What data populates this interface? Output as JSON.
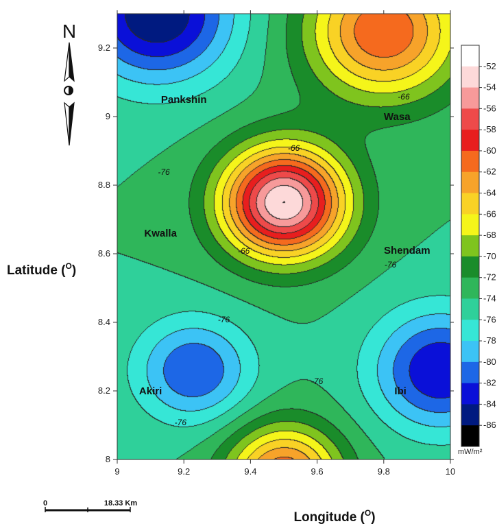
{
  "chart_data": {
    "type": "heatmap",
    "xlabel": "Longitude (",
    "xlabel_sup": "O",
    "xlabel_close": ")",
    "ylabel": "Latitude (",
    "ylabel_sup": "O",
    "ylabel_close": ")",
    "xlim": [
      9,
      10
    ],
    "ylim": [
      8,
      9.3
    ],
    "x_ticks": [
      "9",
      "9.2",
      "9.4",
      "9.6",
      "9.8",
      "10"
    ],
    "y_ticks": [
      "8",
      "8.2",
      "8.4",
      "8.6",
      "8.8",
      "9",
      "9.2"
    ],
    "colorbar": {
      "levels": [
        "-52",
        "-54",
        "-56",
        "-58",
        "-60",
        "-62",
        "-64",
        "-66",
        "-68",
        "-70",
        "-72",
        "-74",
        "-76",
        "-78",
        "-80",
        "-82",
        "-84",
        "-86"
      ],
      "colors": [
        "#ffffff",
        "#fdd9d9",
        "#f79a9a",
        "#ee4a4a",
        "#e81e1e",
        "#f56a1e",
        "#f7a32a",
        "#f9d225",
        "#f5f51a",
        "#7fc41e",
        "#1a8c2a",
        "#2fb65a",
        "#2fd09a",
        "#36e6d6",
        "#3cc3f5",
        "#1d67e6",
        "#0a10d8",
        "#001a80",
        "#000000"
      ],
      "unit": "mW/m²"
    },
    "places": [
      {
        "name": "Pankshin",
        "lon": 9.2,
        "lat": 9.04
      },
      {
        "name": "Wasa",
        "lon": 9.84,
        "lat": 8.99
      },
      {
        "name": "Kwalla",
        "lon": 9.13,
        "lat": 8.65
      },
      {
        "name": "Shendam",
        "lon": 9.87,
        "lat": 8.6
      },
      {
        "name": "Akiri",
        "lon": 9.1,
        "lat": 8.19
      },
      {
        "name": "Ibi",
        "lon": 9.85,
        "lat": 8.19
      }
    ],
    "contour_labels": [
      {
        "text": "-66",
        "lon": 9.86,
        "lat": 9.05
      },
      {
        "text": "-66",
        "lon": 9.53,
        "lat": 8.9
      },
      {
        "text": "-66",
        "lon": 9.38,
        "lat": 8.6
      },
      {
        "text": "-76",
        "lon": 9.14,
        "lat": 8.83
      },
      {
        "text": "-76",
        "lon": 9.32,
        "lat": 8.4
      },
      {
        "text": "-76",
        "lon": 9.82,
        "lat": 8.56
      },
      {
        "text": "-76",
        "lon": 9.6,
        "lat": 8.22
      },
      {
        "text": "-76",
        "lon": 9.19,
        "lat": 8.1
      }
    ],
    "highs": [
      {
        "lon": 9.5,
        "lat": 8.75,
        "value": -52,
        "sigma": 0.13
      },
      {
        "lon": 9.8,
        "lat": 9.25,
        "value": -60,
        "sigma": 0.16
      },
      {
        "lon": 9.5,
        "lat": 7.95,
        "value": -60,
        "sigma": 0.12
      }
    ],
    "lows": [
      {
        "lon": 9.12,
        "lat": 9.3,
        "value": -86,
        "sigma": 0.16
      },
      {
        "lon": 9.97,
        "lat": 8.26,
        "value": -84,
        "sigma": 0.14
      },
      {
        "lon": 9.23,
        "lat": 8.26,
        "value": -82,
        "sigma": 0.12
      }
    ],
    "background_value": -74
  },
  "north": {
    "label": "N"
  },
  "scalebar": {
    "start": "0",
    "end": "18.33 Km"
  }
}
